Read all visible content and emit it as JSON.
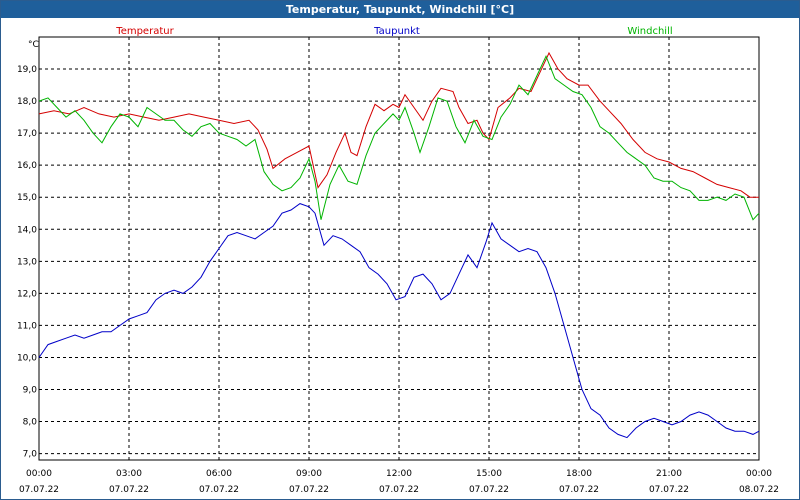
{
  "window": {
    "title": "Temperatur, Taupunkt, Windchill [°C]"
  },
  "chart_data": {
    "type": "line",
    "title": "Temperatur, Taupunkt, Windchill [°C]",
    "ylabel": "°C",
    "ylim": [
      6.8,
      20.0
    ],
    "y_ticks": [
      "7,0",
      "8,0",
      "9,0",
      "10,0",
      "11,0",
      "12,0",
      "13,0",
      "14,0",
      "15,0",
      "16,0",
      "17,0",
      "18,0",
      "19,0"
    ],
    "xlim_hours": [
      0,
      24
    ],
    "x_ticks": [
      {
        "time": "00:00",
        "date": "07.07.22"
      },
      {
        "time": "03:00",
        "date": "07.07.22"
      },
      {
        "time": "06:00",
        "date": "07.07.22"
      },
      {
        "time": "09:00",
        "date": "07.07.22"
      },
      {
        "time": "12:00",
        "date": "07.07.22"
      },
      {
        "time": "15:00",
        "date": "07.07.22"
      },
      {
        "time": "18:00",
        "date": "07.07.22"
      },
      {
        "time": "21:00",
        "date": "07.07.22"
      },
      {
        "time": "00:00",
        "date": "08.07.22"
      }
    ],
    "grid": true,
    "legend_position": "top",
    "series": [
      {
        "name": "Temperatur",
        "color": "#d40000",
        "points": [
          [
            0,
            17.6
          ],
          [
            0.5,
            17.7
          ],
          [
            1,
            17.6
          ],
          [
            1.5,
            17.8
          ],
          [
            2,
            17.6
          ],
          [
            2.5,
            17.5
          ],
          [
            3,
            17.6
          ],
          [
            3.5,
            17.5
          ],
          [
            4,
            17.4
          ],
          [
            4.5,
            17.5
          ],
          [
            5,
            17.6
          ],
          [
            5.5,
            17.5
          ],
          [
            6,
            17.4
          ],
          [
            6.5,
            17.3
          ],
          [
            7,
            17.4
          ],
          [
            7.3,
            17.1
          ],
          [
            7.6,
            16.5
          ],
          [
            7.8,
            15.9
          ],
          [
            8.2,
            16.2
          ],
          [
            8.6,
            16.4
          ],
          [
            9,
            16.6
          ],
          [
            9.3,
            15.3
          ],
          [
            9.6,
            15.7
          ],
          [
            9.9,
            16.4
          ],
          [
            10.2,
            17.0
          ],
          [
            10.4,
            16.4
          ],
          [
            10.6,
            16.3
          ],
          [
            10.9,
            17.2
          ],
          [
            11.2,
            17.9
          ],
          [
            11.5,
            17.7
          ],
          [
            11.8,
            17.9
          ],
          [
            12,
            17.8
          ],
          [
            12.2,
            18.2
          ],
          [
            12.5,
            17.8
          ],
          [
            12.8,
            17.4
          ],
          [
            13.1,
            18.0
          ],
          [
            13.4,
            18.4
          ],
          [
            13.8,
            18.3
          ],
          [
            14,
            17.8
          ],
          [
            14.3,
            17.3
          ],
          [
            14.6,
            17.4
          ],
          [
            14.8,
            17.0
          ],
          [
            15,
            16.8
          ],
          [
            15.3,
            17.8
          ],
          [
            15.7,
            18.1
          ],
          [
            16,
            18.4
          ],
          [
            16.4,
            18.3
          ],
          [
            16.7,
            18.9
          ],
          [
            17,
            19.5
          ],
          [
            17.3,
            19.0
          ],
          [
            17.6,
            18.7
          ],
          [
            18,
            18.5
          ],
          [
            18.3,
            18.5
          ],
          [
            18.7,
            18.0
          ],
          [
            19,
            17.7
          ],
          [
            19.4,
            17.3
          ],
          [
            19.8,
            16.8
          ],
          [
            20.2,
            16.4
          ],
          [
            20.6,
            16.2
          ],
          [
            21,
            16.1
          ],
          [
            21.4,
            15.9
          ],
          [
            21.8,
            15.8
          ],
          [
            22.2,
            15.6
          ],
          [
            22.6,
            15.4
          ],
          [
            23,
            15.3
          ],
          [
            23.4,
            15.2
          ],
          [
            23.7,
            15.0
          ],
          [
            24,
            15.0
          ]
        ]
      },
      {
        "name": "Taupunkt",
        "color": "#0000c8",
        "points": [
          [
            0,
            10.0
          ],
          [
            0.3,
            10.4
          ],
          [
            0.6,
            10.5
          ],
          [
            0.9,
            10.6
          ],
          [
            1.2,
            10.7
          ],
          [
            1.5,
            10.6
          ],
          [
            1.8,
            10.7
          ],
          [
            2.1,
            10.8
          ],
          [
            2.4,
            10.8
          ],
          [
            2.7,
            11.0
          ],
          [
            3,
            11.2
          ],
          [
            3.3,
            11.3
          ],
          [
            3.6,
            11.4
          ],
          [
            3.9,
            11.8
          ],
          [
            4.2,
            12.0
          ],
          [
            4.5,
            12.1
          ],
          [
            4.8,
            12.0
          ],
          [
            5.1,
            12.2
          ],
          [
            5.4,
            12.5
          ],
          [
            5.7,
            13.0
          ],
          [
            6,
            13.4
          ],
          [
            6.3,
            13.8
          ],
          [
            6.6,
            13.9
          ],
          [
            6.9,
            13.8
          ],
          [
            7.2,
            13.7
          ],
          [
            7.5,
            13.9
          ],
          [
            7.8,
            14.1
          ],
          [
            8.1,
            14.5
          ],
          [
            8.4,
            14.6
          ],
          [
            8.7,
            14.8
          ],
          [
            9,
            14.7
          ],
          [
            9.2,
            14.5
          ],
          [
            9.5,
            13.5
          ],
          [
            9.8,
            13.8
          ],
          [
            10.1,
            13.7
          ],
          [
            10.4,
            13.5
          ],
          [
            10.7,
            13.3
          ],
          [
            11,
            12.8
          ],
          [
            11.3,
            12.6
          ],
          [
            11.6,
            12.3
          ],
          [
            11.9,
            11.8
          ],
          [
            12.2,
            11.9
          ],
          [
            12.5,
            12.5
          ],
          [
            12.8,
            12.6
          ],
          [
            13.1,
            12.3
          ],
          [
            13.4,
            11.8
          ],
          [
            13.7,
            12.0
          ],
          [
            14,
            12.6
          ],
          [
            14.3,
            13.2
          ],
          [
            14.6,
            12.8
          ],
          [
            14.9,
            13.6
          ],
          [
            15.1,
            14.2
          ],
          [
            15.4,
            13.7
          ],
          [
            15.7,
            13.5
          ],
          [
            16,
            13.3
          ],
          [
            16.3,
            13.4
          ],
          [
            16.6,
            13.3
          ],
          [
            16.9,
            12.8
          ],
          [
            17.2,
            12.0
          ],
          [
            17.5,
            11.0
          ],
          [
            17.8,
            10.0
          ],
          [
            18.1,
            9.0
          ],
          [
            18.4,
            8.4
          ],
          [
            18.7,
            8.2
          ],
          [
            19,
            7.8
          ],
          [
            19.3,
            7.6
          ],
          [
            19.6,
            7.5
          ],
          [
            19.9,
            7.8
          ],
          [
            20.2,
            8.0
          ],
          [
            20.5,
            8.1
          ],
          [
            20.8,
            8.0
          ],
          [
            21.1,
            7.9
          ],
          [
            21.4,
            8.0
          ],
          [
            21.7,
            8.2
          ],
          [
            22,
            8.3
          ],
          [
            22.3,
            8.2
          ],
          [
            22.6,
            8.0
          ],
          [
            22.9,
            7.8
          ],
          [
            23.2,
            7.7
          ],
          [
            23.5,
            7.7
          ],
          [
            23.8,
            7.6
          ],
          [
            24,
            7.7
          ]
        ]
      },
      {
        "name": "Windchill",
        "color": "#00b400",
        "points": [
          [
            0,
            18.0
          ],
          [
            0.3,
            18.1
          ],
          [
            0.6,
            17.8
          ],
          [
            0.9,
            17.5
          ],
          [
            1.2,
            17.7
          ],
          [
            1.5,
            17.4
          ],
          [
            1.8,
            17.0
          ],
          [
            2.1,
            16.7
          ],
          [
            2.4,
            17.2
          ],
          [
            2.7,
            17.6
          ],
          [
            3,
            17.5
          ],
          [
            3.3,
            17.2
          ],
          [
            3.6,
            17.8
          ],
          [
            3.9,
            17.6
          ],
          [
            4.2,
            17.4
          ],
          [
            4.5,
            17.4
          ],
          [
            4.8,
            17.1
          ],
          [
            5.1,
            16.9
          ],
          [
            5.4,
            17.2
          ],
          [
            5.7,
            17.3
          ],
          [
            6,
            17.0
          ],
          [
            6.3,
            16.9
          ],
          [
            6.6,
            16.8
          ],
          [
            6.9,
            16.6
          ],
          [
            7.2,
            16.8
          ],
          [
            7.5,
            15.8
          ],
          [
            7.8,
            15.4
          ],
          [
            8.1,
            15.2
          ],
          [
            8.4,
            15.3
          ],
          [
            8.7,
            15.6
          ],
          [
            9,
            16.2
          ],
          [
            9.2,
            15.5
          ],
          [
            9.4,
            14.3
          ],
          [
            9.7,
            15.4
          ],
          [
            10,
            16.0
          ],
          [
            10.3,
            15.5
          ],
          [
            10.6,
            15.4
          ],
          [
            10.9,
            16.3
          ],
          [
            11.2,
            17.0
          ],
          [
            11.5,
            17.3
          ],
          [
            11.8,
            17.6
          ],
          [
            12,
            17.4
          ],
          [
            12.2,
            17.8
          ],
          [
            12.5,
            17.0
          ],
          [
            12.7,
            16.4
          ],
          [
            13,
            17.2
          ],
          [
            13.3,
            18.1
          ],
          [
            13.6,
            18.0
          ],
          [
            13.9,
            17.2
          ],
          [
            14.2,
            16.7
          ],
          [
            14.5,
            17.4
          ],
          [
            14.8,
            16.9
          ],
          [
            15.1,
            16.8
          ],
          [
            15.4,
            17.5
          ],
          [
            15.7,
            17.9
          ],
          [
            16,
            18.5
          ],
          [
            16.3,
            18.2
          ],
          [
            16.6,
            18.8
          ],
          [
            16.9,
            19.4
          ],
          [
            17.2,
            18.7
          ],
          [
            17.5,
            18.5
          ],
          [
            17.8,
            18.3
          ],
          [
            18.1,
            18.2
          ],
          [
            18.4,
            17.8
          ],
          [
            18.7,
            17.2
          ],
          [
            19,
            17.0
          ],
          [
            19.3,
            16.7
          ],
          [
            19.6,
            16.4
          ],
          [
            19.9,
            16.2
          ],
          [
            20.2,
            16.0
          ],
          [
            20.5,
            15.6
          ],
          [
            20.8,
            15.5
          ],
          [
            21.1,
            15.5
          ],
          [
            21.4,
            15.3
          ],
          [
            21.7,
            15.2
          ],
          [
            22,
            14.9
          ],
          [
            22.3,
            14.9
          ],
          [
            22.6,
            15.0
          ],
          [
            22.9,
            14.9
          ],
          [
            23.2,
            15.1
          ],
          [
            23.5,
            15.0
          ],
          [
            23.8,
            14.3
          ],
          [
            24,
            14.5
          ]
        ]
      }
    ]
  }
}
